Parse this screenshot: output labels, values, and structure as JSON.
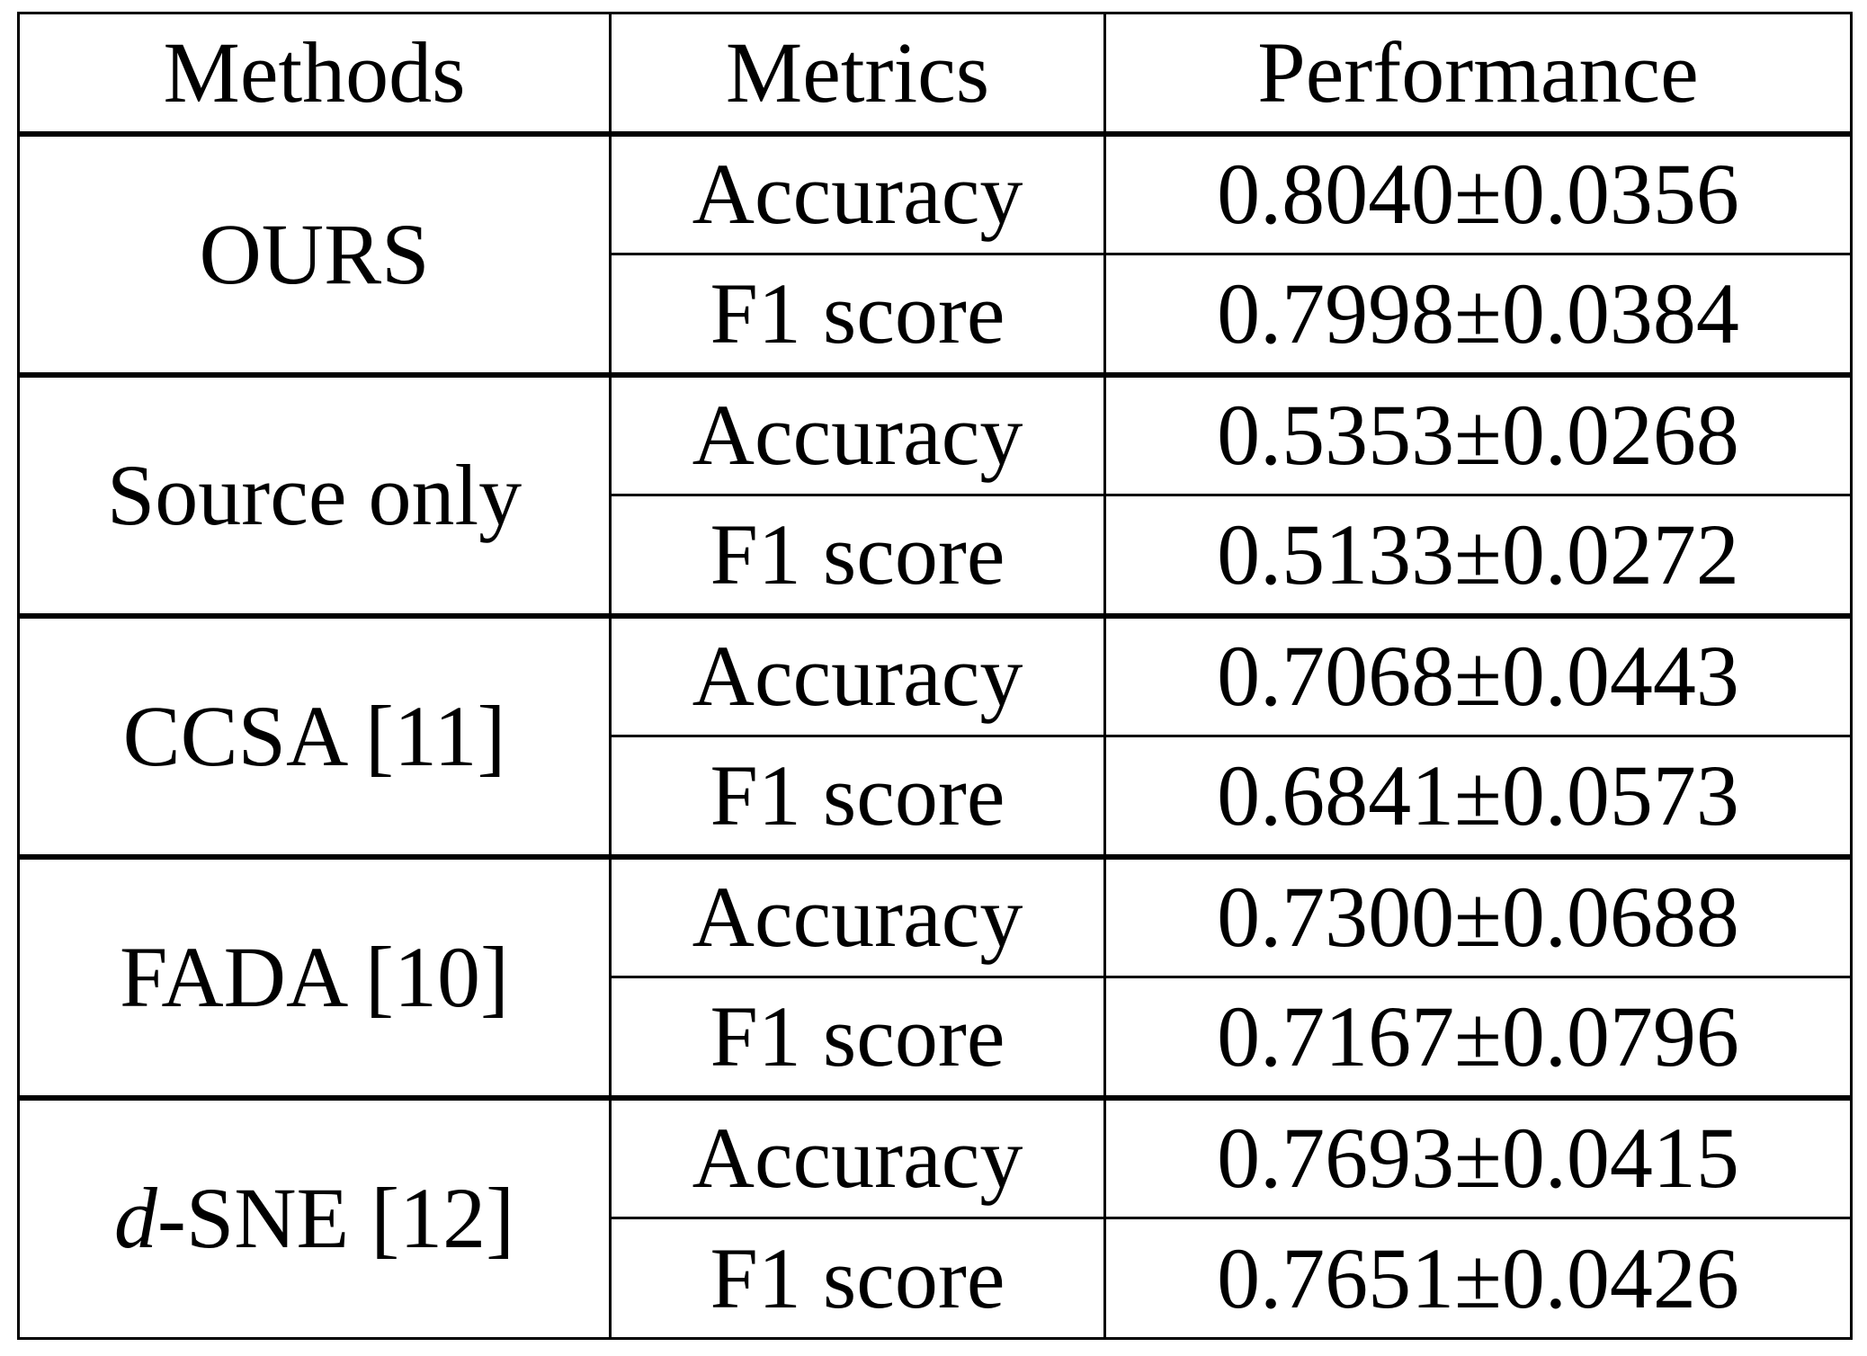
{
  "headers": {
    "method": "Methods",
    "metric": "Metrics",
    "performance": "Performance"
  },
  "rows": [
    {
      "method": "OURS",
      "accuracy_label": "Accuracy",
      "accuracy": "0.8040±0.0356",
      "f1_label": "F1 score",
      "f1": "0.7998±0.0384",
      "best": true
    },
    {
      "method": "Source only",
      "accuracy_label": "Accuracy",
      "accuracy": "0.5353±0.0268",
      "f1_label": "F1 score",
      "f1": "0.5133±0.0272"
    },
    {
      "method": "CCSA [11]",
      "accuracy_label": "Accuracy",
      "accuracy": "0.7068±0.0443",
      "f1_label": "F1 score",
      "f1": "0.6841±0.0573"
    },
    {
      "method": "FADA [10]",
      "accuracy_label": "Accuracy",
      "accuracy": "0.7300±0.0688",
      "f1_label": "F1 score",
      "f1": "0.7167±0.0796"
    },
    {
      "method_prefix": "d",
      "method_suffix": "-SNE [12]",
      "accuracy_label": "Accuracy",
      "accuracy": "0.7693±0.0415",
      "f1_label": "F1 score",
      "f1": "0.7651±0.0426"
    }
  ]
}
